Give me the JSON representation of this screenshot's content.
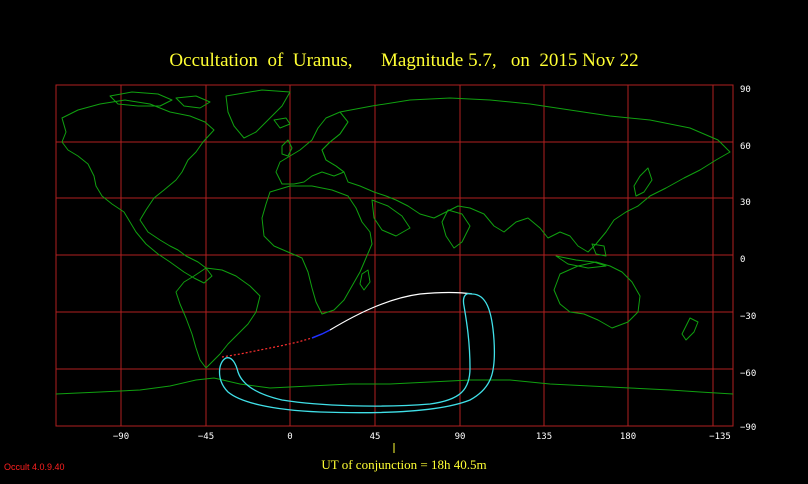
{
  "title": {
    "prefix": "Occultation  of  Uranus,",
    "magnitude": "Magnitude 5.7,",
    "date": "on  2015 Nov 22"
  },
  "footer": "UT of conjunction = 18h 40.5m",
  "version": "Occult 4.0.9.40",
  "colors": {
    "background": "#000000",
    "grid": "#b02020",
    "coast": "#10a010",
    "title": "#ffff33",
    "path_daylight": "#ffffff",
    "path_night": "#ff3030",
    "path_twilight": "#2030ff",
    "limit_curve": "#40e0e8",
    "version": "#ff2020"
  },
  "map": {
    "longitude_ticks": [
      "−90",
      "−45",
      "0",
      "45",
      "90",
      "135",
      "180",
      "−135"
    ],
    "latitude_ticks": [
      "90",
      "60",
      "30",
      "0",
      "−30",
      "−60",
      "−90"
    ],
    "longitude_range": [
      -150,
      225
    ],
    "latitude_range": [
      -90,
      90
    ]
  }
}
